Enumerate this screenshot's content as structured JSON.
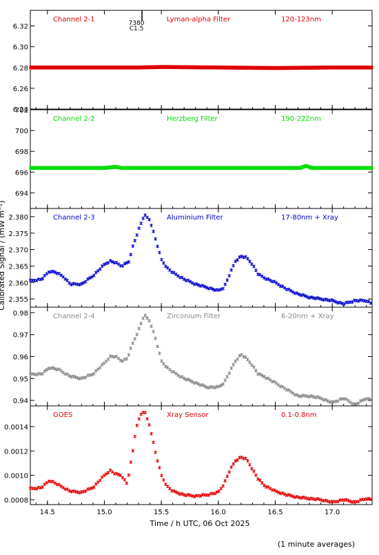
{
  "shared_axis": {
    "xlabel": "Time / h UTC, 06 Oct 2025",
    "xlim": [
      14.35,
      17.35
    ],
    "xticks": [
      14.5,
      15.0,
      15.5,
      16.0,
      16.5,
      17.0
    ],
    "xtick_labels": [
      "14.5",
      "15.0",
      "15.5",
      "16.0",
      "16.5",
      "17.0"
    ],
    "ylabel": "Calibrated Signal / (mW m⁻²)"
  },
  "footnote": "(1 minute averages)",
  "event_marker": {
    "x": 15.33,
    "labels": [
      "7380",
      "C1.5"
    ]
  },
  "colors": {
    "red": "#e00000",
    "green": "#00dd00",
    "blue": "#0000cc",
    "gray": "#888888",
    "axis": "#000000"
  },
  "chart_data": [
    {
      "type": "scatter",
      "channel": "Channel 2-1",
      "filter": "Lyman-alpha Filter",
      "band": "120-123nm",
      "color": "#e00000",
      "ylim": [
        6.24,
        6.335
      ],
      "yticks": [
        6.24,
        6.26,
        6.28,
        6.3,
        6.32
      ],
      "ytick_labels": [
        "6.24",
        "6.26",
        "6.28",
        "6.30",
        "6.32"
      ],
      "series": [
        {
          "x": [
            14.35,
            14.5,
            15.0,
            15.3,
            15.5,
            16.0,
            16.5,
            17.0,
            17.35
          ],
          "y": [
            6.28,
            6.28,
            6.28,
            6.28,
            6.2805,
            6.28,
            6.2795,
            6.28,
            6.28
          ]
        }
      ]
    },
    {
      "type": "scatter",
      "channel": "Channel 2-2",
      "filter": "Herzberg Filter",
      "band": "190-222nm",
      "color": "#00dd00",
      "ylim": [
        692.5,
        702
      ],
      "yticks": [
        694,
        696,
        698,
        700,
        702
      ],
      "ytick_labels": [
        "694",
        "696",
        "698",
        "700",
        "702"
      ],
      "series": [
        {
          "x": [
            14.35,
            14.5,
            15.0,
            15.1,
            15.15,
            15.5,
            16.0,
            16.5,
            16.72,
            16.77,
            16.82,
            17.0,
            17.35
          ],
          "y": [
            696.4,
            696.4,
            696.4,
            696.5,
            696.4,
            696.4,
            696.4,
            696.4,
            696.4,
            696.6,
            696.4,
            696.4,
            696.4
          ]
        }
      ]
    },
    {
      "type": "scatter",
      "channel": "Channel 2-3",
      "filter": "Aluminium Filter",
      "band": "17-80nm + Xray",
      "color": "#0000cc",
      "ylim": [
        2.3525,
        2.3825
      ],
      "yticks": [
        2.355,
        2.36,
        2.365,
        2.37,
        2.375,
        2.38
      ],
      "ytick_labels": [
        "2.355",
        "2.360",
        "2.365",
        "2.370",
        "2.375",
        "2.380"
      ],
      "series": [
        {
          "x": [
            14.35,
            14.45,
            14.52,
            14.58,
            14.65,
            14.7,
            14.8,
            14.9,
            15.0,
            15.05,
            15.1,
            15.15,
            15.22,
            15.25,
            15.3,
            15.35,
            15.4,
            15.45,
            15.5,
            15.55,
            15.6,
            15.7,
            15.8,
            15.9,
            16.0,
            16.05,
            16.1,
            16.15,
            16.2,
            16.25,
            16.3,
            16.35,
            16.4,
            16.5,
            16.6,
            16.7,
            16.8,
            16.9,
            17.0,
            17.1,
            17.2,
            17.3,
            17.35
          ],
          "y": [
            2.3605,
            2.361,
            2.3635,
            2.363,
            2.3615,
            2.3595,
            2.3595,
            2.362,
            2.3655,
            2.3665,
            2.366,
            2.365,
            2.3665,
            2.371,
            2.376,
            2.3805,
            2.379,
            2.373,
            2.367,
            2.3645,
            2.363,
            2.361,
            2.3595,
            2.3585,
            2.3575,
            2.3585,
            2.3625,
            2.3665,
            2.368,
            2.3675,
            2.3655,
            2.3625,
            2.3615,
            2.36,
            2.358,
            2.3565,
            2.3555,
            2.355,
            2.3545,
            2.3535,
            2.3545,
            2.3545,
            2.3535
          ]
        }
      ]
    },
    {
      "type": "scatter",
      "channel": "Channel 2-4",
      "filter": "Zirconium Filter",
      "band": "6-20nm + Xray",
      "color": "#888888",
      "ylim": [
        0.9375,
        0.9825
      ],
      "yticks": [
        0.94,
        0.95,
        0.96,
        0.97,
        0.98
      ],
      "ytick_labels": [
        "0.94",
        "0.95",
        "0.96",
        "0.97",
        "0.98"
      ],
      "series": [
        {
          "x": [
            14.35,
            14.45,
            14.52,
            14.6,
            14.7,
            14.8,
            14.9,
            15.0,
            15.05,
            15.1,
            15.15,
            15.2,
            15.25,
            15.3,
            15.35,
            15.4,
            15.45,
            15.5,
            15.55,
            15.6,
            15.7,
            15.8,
            15.9,
            16.0,
            16.05,
            16.1,
            16.15,
            16.2,
            16.25,
            16.3,
            16.35,
            16.4,
            16.5,
            16.6,
            16.7,
            16.8,
            16.9,
            17.0,
            17.1,
            17.2,
            17.3,
            17.35
          ],
          "y": [
            0.952,
            0.952,
            0.955,
            0.954,
            0.951,
            0.95,
            0.952,
            0.957,
            0.96,
            0.96,
            0.958,
            0.959,
            0.966,
            0.972,
            0.979,
            0.976,
            0.968,
            0.958,
            0.955,
            0.953,
            0.95,
            0.948,
            0.946,
            0.946,
            0.948,
            0.953,
            0.958,
            0.961,
            0.959,
            0.956,
            0.952,
            0.951,
            0.948,
            0.945,
            0.942,
            0.942,
            0.941,
            0.939,
            0.941,
            0.938,
            0.941,
            0.94
          ]
        }
      ]
    },
    {
      "type": "scatter",
      "channel": "GOES",
      "filter": "Xray Sensor",
      "band": "0.1-0.8nm",
      "color": "#e00000",
      "ylim": [
        0.00076,
        0.00157
      ],
      "yticks": [
        0.0008,
        0.001,
        0.0012,
        0.0014
      ],
      "ytick_labels": [
        "0.0008",
        "0.0010",
        "0.0012",
        "0.0014"
      ],
      "series": [
        {
          "x": [
            14.35,
            14.45,
            14.52,
            14.6,
            14.7,
            14.8,
            14.9,
            15.0,
            15.05,
            15.1,
            15.15,
            15.2,
            15.25,
            15.28,
            15.32,
            15.35,
            15.4,
            15.45,
            15.5,
            15.55,
            15.6,
            15.7,
            15.8,
            15.9,
            16.0,
            16.05,
            16.1,
            16.15,
            16.2,
            16.25,
            16.3,
            16.35,
            16.4,
            16.5,
            16.6,
            16.7,
            16.8,
            16.9,
            17.0,
            17.1,
            17.2,
            17.3,
            17.35
          ],
          "y": [
            0.00089,
            0.0009,
            0.00096,
            0.00092,
            0.00087,
            0.00086,
            0.0009,
            0.001,
            0.00104,
            0.00101,
            0.001,
            0.00093,
            0.0012,
            0.0014,
            0.0015,
            0.00153,
            0.0014,
            0.00118,
            0.001,
            0.00091,
            0.00087,
            0.00084,
            0.00083,
            0.00084,
            0.00086,
            0.00093,
            0.00104,
            0.00112,
            0.00115,
            0.00113,
            0.00105,
            0.00097,
            0.00092,
            0.00087,
            0.00084,
            0.00082,
            0.00081,
            0.0008,
            0.00078,
            0.0008,
            0.00078,
            0.00081,
            0.0008
          ]
        }
      ]
    }
  ]
}
